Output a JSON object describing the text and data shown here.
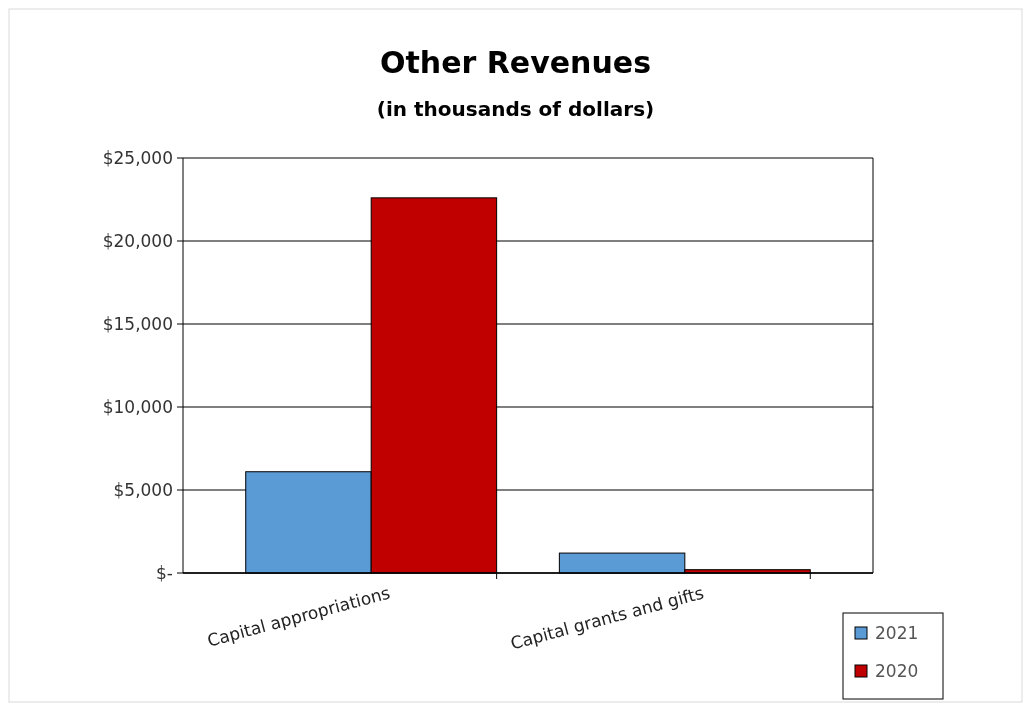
{
  "chart_data": {
    "type": "bar",
    "title": "Other Revenues",
    "subtitle": "(in thousands of dollars)",
    "categories": [
      "Capital appropriations",
      "Capital grants and gifts"
    ],
    "series": [
      {
        "name": "2021",
        "color": "#5b9bd5",
        "values": [
          6100,
          1200
        ]
      },
      {
        "name": "2020",
        "color": "#c00000",
        "values": [
          22600,
          200
        ]
      }
    ],
    "ylim": [
      0,
      25000
    ],
    "yticks": [
      {
        "value": 0,
        "label": "$-"
      },
      {
        "value": 5000,
        "label": "$5,000"
      },
      {
        "value": 10000,
        "label": "$10,000"
      },
      {
        "value": 15000,
        "label": "$15,000"
      },
      {
        "value": 20000,
        "label": "$20,000"
      },
      {
        "value": 25000,
        "label": "$25,000"
      }
    ],
    "grid": "y",
    "legend": "bottom right"
  }
}
